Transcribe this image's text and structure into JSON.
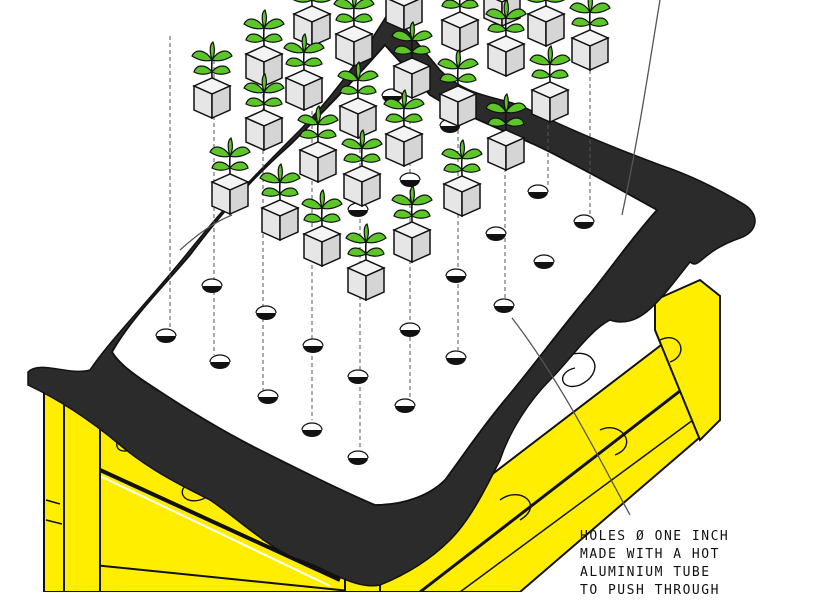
{
  "annotation": {
    "lines": [
      "HOLES ø ONE INCH",
      "MADE WITH A HOT",
      "ALUMINIUM TUBE",
      "TO PUSH THROUGH"
    ]
  },
  "colors": {
    "wood": "#ffee00",
    "liner": "#2b2b2b",
    "sheet": "#ffffff",
    "leaf": "#5cc629",
    "outline": "#111111",
    "cube_top": "#f2f2f2",
    "cube_side": "#dcdcdc"
  },
  "icons": {
    "seedling": "seedling-icon",
    "hole": "planting-hole",
    "frame": "raised-bed-frame"
  }
}
